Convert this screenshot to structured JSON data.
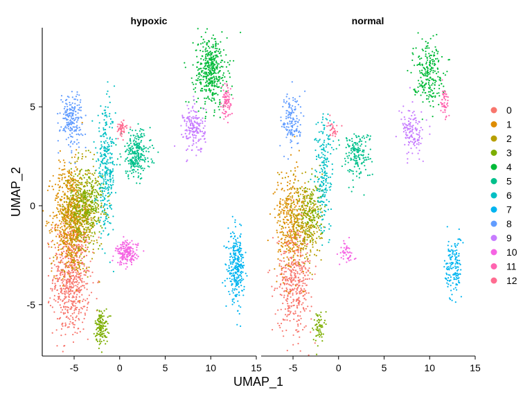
{
  "chart_data": {
    "type": "scatter",
    "title": "",
    "xlabel": "UMAP_1",
    "ylabel": "UMAP_2",
    "xlim": [
      -8.5,
      15
    ],
    "ylim": [
      -7.6,
      9.0
    ],
    "x_ticks": [
      -5,
      0,
      5,
      10,
      15
    ],
    "y_ticks": [
      -5,
      0,
      5
    ],
    "x_tick_labels": [
      "-5",
      "0",
      "5",
      "10",
      "15"
    ],
    "y_tick_labels": [
      "-5",
      "0",
      "5"
    ],
    "legend": {
      "placement": "right",
      "entries": [
        {
          "label": "0",
          "color": "#F8766D"
        },
        {
          "label": "1",
          "color": "#DE8C00"
        },
        {
          "label": "2",
          "color": "#B79F00"
        },
        {
          "label": "3",
          "color": "#7CAE00"
        },
        {
          "label": "4",
          "color": "#00BA38"
        },
        {
          "label": "5",
          "color": "#00C08B"
        },
        {
          "label": "6",
          "color": "#00BFC4"
        },
        {
          "label": "7",
          "color": "#00B4F0"
        },
        {
          "label": "8",
          "color": "#619CFF"
        },
        {
          "label": "9",
          "color": "#C77CFF"
        },
        {
          "label": "10",
          "color": "#F564E3"
        },
        {
          "label": "11",
          "color": "#FF64B0"
        },
        {
          "label": "12",
          "color": "#FF6C91"
        }
      ]
    },
    "panels": [
      {
        "title": "hypoxic",
        "clusters": [
          {
            "cluster": "0",
            "cx": -5.3,
            "cy": -3.6,
            "sx": 1.0,
            "sy": 1.5,
            "n": 650
          },
          {
            "cluster": "1",
            "cx": -5.6,
            "cy": -0.6,
            "sx": 0.9,
            "sy": 1.4,
            "n": 520
          },
          {
            "cluster": "2",
            "cx": -4.3,
            "cy": -0.4,
            "sx": 1.0,
            "sy": 1.2,
            "n": 500
          },
          {
            "cluster": "3",
            "cx": -3.5,
            "cy": 0.2,
            "sx": 0.9,
            "sy": 0.9,
            "n": 260
          },
          {
            "cluster": "3",
            "cx": -2.0,
            "cy": -6.1,
            "sx": 0.35,
            "sy": 0.45,
            "n": 130
          },
          {
            "cluster": "4",
            "cx": 10.0,
            "cy": 6.8,
            "sx": 0.9,
            "sy": 0.9,
            "n": 420
          },
          {
            "cluster": "5",
            "cx": 1.8,
            "cy": 2.6,
            "sx": 0.8,
            "sy": 0.6,
            "n": 260
          },
          {
            "cluster": "6",
            "cx": -1.5,
            "cy": 1.8,
            "sx": 0.5,
            "sy": 1.5,
            "n": 300
          },
          {
            "cluster": "7",
            "cx": 12.8,
            "cy": -3.1,
            "sx": 0.45,
            "sy": 0.85,
            "n": 280
          },
          {
            "cluster": "8",
            "cx": -5.3,
            "cy": 4.4,
            "sx": 0.6,
            "sy": 0.7,
            "n": 190
          },
          {
            "cluster": "9",
            "cx": 8.2,
            "cy": 3.9,
            "sx": 0.6,
            "sy": 0.6,
            "n": 170
          },
          {
            "cluster": "10",
            "cx": 0.8,
            "cy": -2.4,
            "sx": 0.6,
            "sy": 0.3,
            "n": 180
          },
          {
            "cluster": "11",
            "cx": 11.7,
            "cy": 5.2,
            "sx": 0.25,
            "sy": 0.4,
            "n": 80
          },
          {
            "cluster": "12",
            "cx": 0.2,
            "cy": 3.9,
            "sx": 0.3,
            "sy": 0.2,
            "n": 50
          }
        ]
      },
      {
        "title": "normal",
        "clusters": [
          {
            "cluster": "0",
            "cx": -4.8,
            "cy": -3.7,
            "sx": 0.95,
            "sy": 1.3,
            "n": 420
          },
          {
            "cluster": "1",
            "cx": -5.4,
            "cy": -0.8,
            "sx": 0.8,
            "sy": 1.3,
            "n": 300
          },
          {
            "cluster": "2",
            "cx": -3.6,
            "cy": -0.8,
            "sx": 0.9,
            "sy": 1.1,
            "n": 320
          },
          {
            "cluster": "3",
            "cx": -2.9,
            "cy": -0.2,
            "sx": 0.6,
            "sy": 0.8,
            "n": 110
          },
          {
            "cluster": "3",
            "cx": -2.2,
            "cy": -6.1,
            "sx": 0.3,
            "sy": 0.4,
            "n": 60
          },
          {
            "cluster": "4",
            "cx": 9.8,
            "cy": 6.8,
            "sx": 0.8,
            "sy": 0.8,
            "n": 230
          },
          {
            "cluster": "5",
            "cx": 2.0,
            "cy": 2.6,
            "sx": 0.8,
            "sy": 0.6,
            "n": 170
          },
          {
            "cluster": "6",
            "cx": -1.6,
            "cy": 1.6,
            "sx": 0.5,
            "sy": 1.5,
            "n": 200
          },
          {
            "cluster": "7",
            "cx": 12.6,
            "cy": -3.1,
            "sx": 0.45,
            "sy": 0.8,
            "n": 150
          },
          {
            "cluster": "8",
            "cx": -5.1,
            "cy": 4.3,
            "sx": 0.6,
            "sy": 0.7,
            "n": 140
          },
          {
            "cluster": "9",
            "cx": 8.1,
            "cy": 3.7,
            "sx": 0.6,
            "sy": 0.6,
            "n": 130
          },
          {
            "cluster": "10",
            "cx": 0.9,
            "cy": -2.4,
            "sx": 0.4,
            "sy": 0.3,
            "n": 45
          },
          {
            "cluster": "11",
            "cx": 11.6,
            "cy": 5.2,
            "sx": 0.25,
            "sy": 0.4,
            "n": 45
          },
          {
            "cluster": "12",
            "cx": -0.6,
            "cy": 3.9,
            "sx": 0.3,
            "sy": 0.2,
            "n": 30
          }
        ]
      }
    ]
  }
}
